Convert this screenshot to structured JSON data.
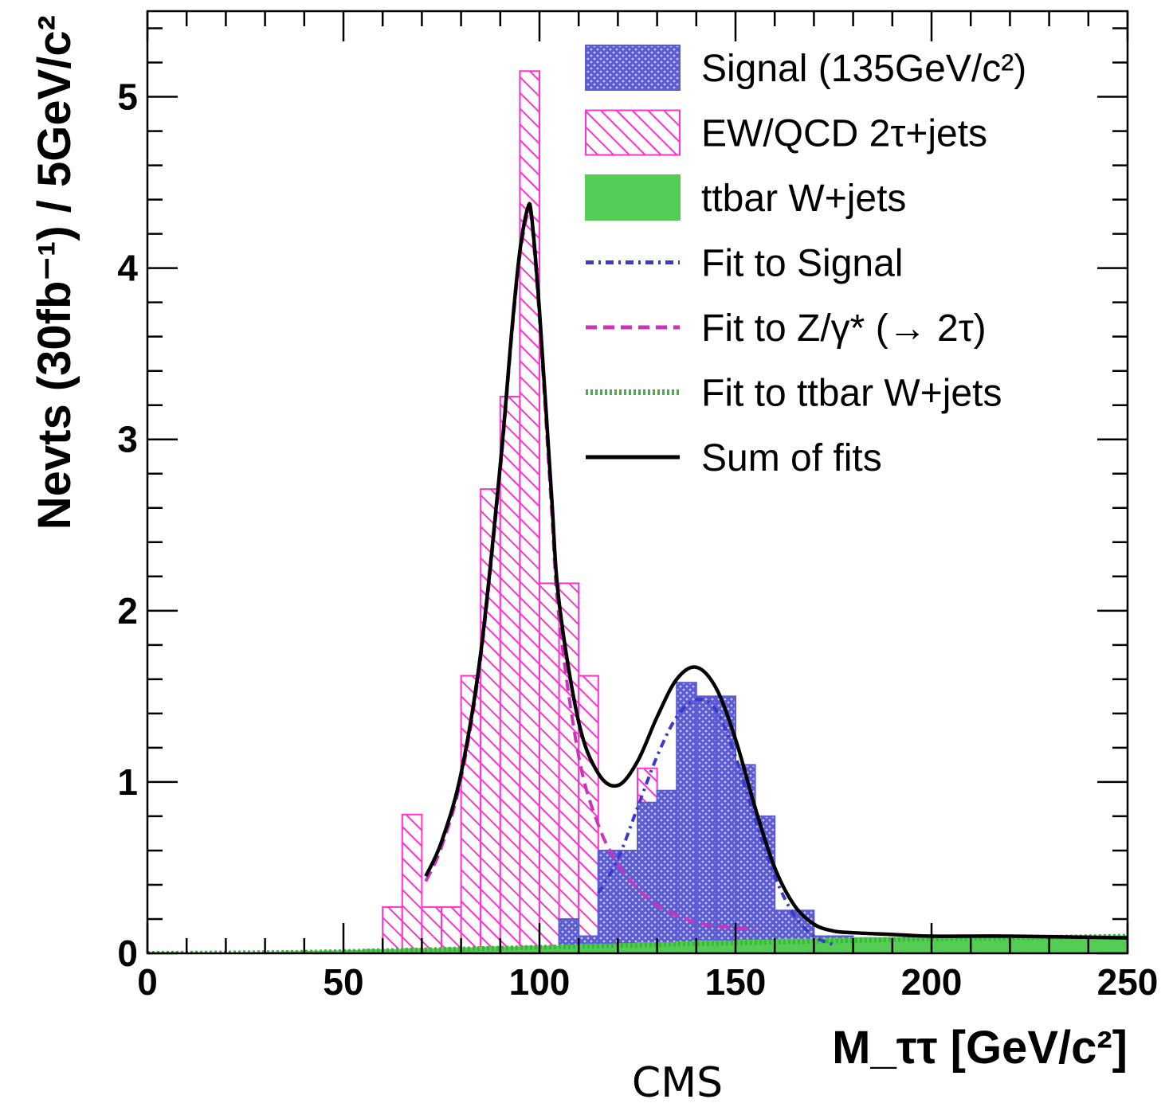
{
  "chart_data": {
    "type": "bar",
    "xlabel": "M_ττ [GeV/c²]",
    "ylabel": "Nevts (30fb⁻¹) / 5GeV/c²",
    "xlim": [
      0,
      250
    ],
    "ylim": [
      0,
      5.5
    ],
    "x_ticks": [
      "0",
      "50",
      "100",
      "150",
      "200",
      "250"
    ],
    "y_ticks": [
      "0",
      "1",
      "2",
      "3",
      "4",
      "5"
    ],
    "bin_width": 5,
    "grid": false,
    "legend_position": "top-right",
    "legend": [
      {
        "key": "signal",
        "label": "Signal (135GeV/c²)",
        "style": "crosshatch-fill",
        "color": "#5b5bd6"
      },
      {
        "key": "ewqcd",
        "label": "EW/QCD 2τ+jets",
        "style": "diagonal-hatch",
        "color": "#ff33cc"
      },
      {
        "key": "ttbar",
        "label": "ttbar W+jets",
        "style": "solid-fill",
        "color": "#55cc55"
      },
      {
        "key": "fit_signal",
        "label": "Fit to Signal",
        "style": "dash-dot",
        "color": "#3a3acc"
      },
      {
        "key": "fit_z",
        "label": "Fit to Z/γ* (→ 2τ)",
        "style": "dashed",
        "color": "#cc33bb"
      },
      {
        "key": "fit_ttbar",
        "label": "Fit to ttbar W+jets",
        "style": "dotted",
        "color": "#33bb33"
      },
      {
        "key": "sum",
        "label": "Sum of fits",
        "style": "solid",
        "color": "#000000"
      }
    ],
    "series": [
      {
        "key": "ewqcd",
        "bins": [
          [
            60,
            0.27
          ],
          [
            65,
            0.81
          ],
          [
            70,
            0.27
          ],
          [
            75,
            0.27
          ],
          [
            80,
            1.62
          ],
          [
            85,
            2.71
          ],
          [
            90,
            3.25
          ],
          [
            95,
            5.15
          ],
          [
            100,
            2.16
          ],
          [
            105,
            2.16
          ],
          [
            110,
            1.62
          ],
          [
            115,
            0.54
          ],
          [
            120,
            0.54
          ],
          [
            125,
            1.08
          ],
          [
            140,
            0.27
          ],
          [
            145,
            0.27
          ],
          [
            150,
            0.27
          ]
        ]
      },
      {
        "key": "signal",
        "bins": [
          [
            105,
            0.2
          ],
          [
            110,
            0.1
          ],
          [
            115,
            0.6
          ],
          [
            120,
            0.6
          ],
          [
            125,
            0.88
          ],
          [
            130,
            0.95
          ],
          [
            135,
            1.58
          ],
          [
            140,
            1.5
          ],
          [
            145,
            1.5
          ],
          [
            150,
            1.1
          ],
          [
            155,
            0.8
          ],
          [
            160,
            0.25
          ],
          [
            165,
            0.25
          ],
          [
            170,
            0.1
          ],
          [
            175,
            0.1
          ],
          [
            180,
            0.05
          ],
          [
            185,
            0.05
          ],
          [
            190,
            0.05
          ],
          [
            195,
            0.05
          ],
          [
            200,
            0.05
          ],
          [
            205,
            0.05
          ],
          [
            210,
            0.05
          ],
          [
            215,
            0.05
          ],
          [
            220,
            0.05
          ],
          [
            225,
            0.05
          ],
          [
            230,
            0.05
          ],
          [
            235,
            0.05
          ],
          [
            240,
            0.05
          ],
          [
            245,
            0.05
          ]
        ]
      },
      {
        "key": "ttbar",
        "bins": [
          [
            25,
            0.003
          ],
          [
            30,
            0.005
          ],
          [
            35,
            0.008
          ],
          [
            40,
            0.01
          ],
          [
            45,
            0.012
          ],
          [
            50,
            0.015
          ],
          [
            55,
            0.02
          ],
          [
            60,
            0.02
          ],
          [
            65,
            0.025
          ],
          [
            70,
            0.025
          ],
          [
            75,
            0.03
          ],
          [
            80,
            0.03
          ],
          [
            85,
            0.035
          ],
          [
            90,
            0.035
          ],
          [
            95,
            0.04
          ],
          [
            100,
            0.04
          ],
          [
            105,
            0.045
          ],
          [
            110,
            0.05
          ],
          [
            115,
            0.05
          ],
          [
            120,
            0.055
          ],
          [
            125,
            0.06
          ],
          [
            130,
            0.06
          ],
          [
            135,
            0.065
          ],
          [
            140,
            0.07
          ],
          [
            145,
            0.07
          ],
          [
            150,
            0.075
          ],
          [
            155,
            0.075
          ],
          [
            160,
            0.08
          ],
          [
            165,
            0.08
          ],
          [
            170,
            0.085
          ],
          [
            175,
            0.085
          ],
          [
            180,
            0.09
          ],
          [
            185,
            0.09
          ],
          [
            190,
            0.09
          ],
          [
            195,
            0.095
          ],
          [
            200,
            0.095
          ],
          [
            205,
            0.095
          ],
          [
            210,
            0.1
          ],
          [
            215,
            0.1
          ],
          [
            220,
            0.1
          ],
          [
            225,
            0.1
          ],
          [
            230,
            0.1
          ],
          [
            235,
            0.1
          ],
          [
            240,
            0.1
          ],
          [
            245,
            0.1
          ]
        ]
      }
    ],
    "curves": [
      {
        "key": "sum",
        "x": [
          71,
          75,
          80,
          85,
          90,
          93,
          95,
          97,
          98,
          100,
          103,
          105,
          110,
          115,
          120,
          125,
          130,
          135,
          140,
          145,
          150,
          155,
          160,
          165,
          170,
          175,
          180,
          190,
          200,
          220,
          250
        ],
        "y": [
          0.45,
          0.65,
          1.05,
          1.75,
          2.85,
          3.65,
          4.1,
          4.35,
          4.3,
          3.75,
          2.7,
          2.05,
          1.35,
          1.05,
          0.98,
          1.12,
          1.38,
          1.6,
          1.67,
          1.55,
          1.25,
          0.85,
          0.5,
          0.28,
          0.17,
          0.13,
          0.12,
          0.11,
          0.1,
          0.1,
          0.09
        ]
      },
      {
        "key": "fit_z",
        "x": [
          71,
          75,
          80,
          85,
          90,
          93,
          95,
          97,
          98,
          100,
          103,
          105,
          110,
          115,
          120,
          125,
          130,
          135,
          140,
          145,
          150,
          155
        ],
        "y": [
          0.42,
          0.62,
          1.02,
          1.72,
          2.82,
          3.62,
          4.07,
          4.32,
          4.27,
          3.7,
          2.62,
          1.95,
          1.15,
          0.75,
          0.52,
          0.38,
          0.28,
          0.22,
          0.18,
          0.16,
          0.15,
          0.14
        ]
      },
      {
        "key": "fit_signal",
        "x": [
          115,
          120,
          125,
          130,
          135,
          140,
          145,
          150,
          155,
          160,
          165,
          170,
          175
        ],
        "y": [
          0.35,
          0.55,
          0.85,
          1.15,
          1.38,
          1.48,
          1.42,
          1.15,
          0.78,
          0.45,
          0.22,
          0.1,
          0.05
        ]
      },
      {
        "key": "fit_ttbar",
        "x": [
          0,
          20,
          40,
          60,
          80,
          100,
          120,
          140,
          160,
          180,
          200,
          220,
          250
        ],
        "y": [
          0.0,
          0.002,
          0.006,
          0.015,
          0.025,
          0.035,
          0.045,
          0.055,
          0.065,
          0.075,
          0.085,
          0.09,
          0.1
        ]
      }
    ]
  },
  "caption": "CMS"
}
